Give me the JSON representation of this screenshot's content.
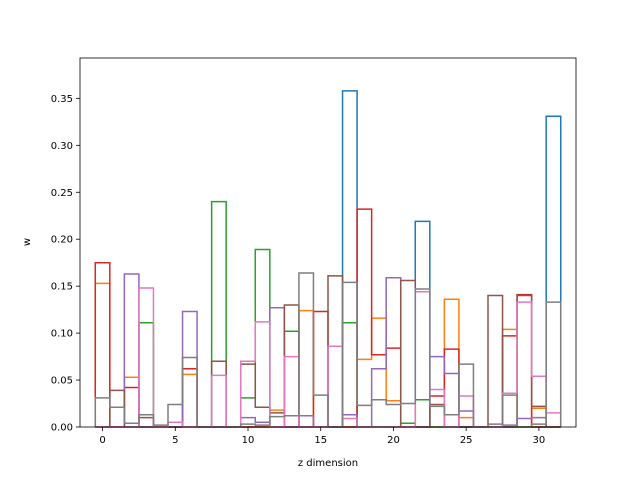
{
  "chart_data": {
    "type": "step-histogram",
    "xlabel": "z dimension",
    "ylabel": "w",
    "xlim": [
      -1.55,
      32.55
    ],
    "ylim": [
      0,
      0.393
    ],
    "xticks": [
      0,
      5,
      10,
      15,
      20,
      25,
      30
    ],
    "yticks": [
      0.0,
      0.05,
      0.1,
      0.15,
      0.2,
      0.25,
      0.3,
      0.35
    ],
    "ytick_labels": [
      "0.00",
      "0.05",
      "0.10",
      "0.15",
      "0.20",
      "0.25",
      "0.30",
      "0.35"
    ],
    "bin_start": -0.5,
    "bin_width": 1,
    "series": [
      {
        "color": "#1f77b4",
        "values": [
          0,
          0,
          0,
          0,
          0,
          0,
          0,
          0,
          0,
          0,
          0,
          0,
          0,
          0,
          0,
          0,
          0,
          0.358,
          0,
          0,
          0,
          0,
          0.219,
          0,
          0,
          0,
          0,
          0,
          0,
          0,
          0,
          0.331
        ]
      },
      {
        "color": "#ff7f0e",
        "values": [
          0.153,
          0,
          0.053,
          0,
          0,
          0,
          0.056,
          0,
          0,
          0,
          0,
          0,
          0.018,
          0,
          0.124,
          0,
          0,
          0,
          0.072,
          0.116,
          0.028,
          0,
          0,
          0,
          0.136,
          0.01,
          0,
          0,
          0.104,
          0,
          0.02,
          0
        ]
      },
      {
        "color": "#2ca02c",
        "values": [
          0,
          0,
          0,
          0.111,
          0,
          0,
          0,
          0,
          0.24,
          0,
          0.031,
          0.189,
          0,
          0.102,
          0,
          0,
          0,
          0.111,
          0,
          0,
          0,
          0.004,
          0.029,
          0,
          0,
          0,
          0,
          0,
          0,
          0,
          0,
          0
        ]
      },
      {
        "color": "#d62728",
        "values": [
          0.175,
          0,
          0.042,
          0,
          0,
          0,
          0.062,
          0,
          0,
          0,
          0,
          0,
          0,
          0,
          0,
          0.123,
          0,
          0,
          0.232,
          0.077,
          0.084,
          0,
          0,
          0.033,
          0.083,
          0,
          0,
          0,
          0.097,
          0.141,
          0,
          0
        ]
      },
      {
        "color": "#9467bd",
        "values": [
          0,
          0,
          0.163,
          0,
          0,
          0,
          0.123,
          0,
          0,
          0,
          0.01,
          0.005,
          0.127,
          0,
          0.012,
          0,
          0,
          0.013,
          0,
          0.062,
          0.159,
          0,
          0,
          0.075,
          0.057,
          0.017,
          0,
          0,
          0.002,
          0.009,
          0.01,
          0
        ]
      },
      {
        "color": "#8c564b",
        "values": [
          0,
          0.039,
          0,
          0.01,
          0,
          0,
          0,
          0,
          0.07,
          0,
          0.067,
          0.021,
          0.015,
          0.13,
          0,
          0,
          0.161,
          0,
          0,
          0,
          0,
          0.156,
          0,
          0.024,
          0,
          0,
          0,
          0.14,
          0,
          0.14,
          0.022,
          0
        ]
      },
      {
        "color": "#e377c2",
        "values": [
          0,
          0,
          0,
          0.148,
          0,
          0.005,
          0,
          0,
          0.055,
          0,
          0.07,
          0.112,
          0,
          0.075,
          0,
          0,
          0.086,
          0.009,
          0,
          0,
          0,
          0,
          0.144,
          0.04,
          0,
          0.033,
          0,
          0,
          0.036,
          0.133,
          0.054,
          0.015
        ]
      },
      {
        "color": "#7f7f7f",
        "values": [
          0.031,
          0.021,
          0.004,
          0.013,
          0.002,
          0.024,
          0.074,
          0,
          0,
          0,
          0.003,
          0.002,
          0.011,
          0.012,
          0.164,
          0.034,
          0,
          0.154,
          0.023,
          0.029,
          0.024,
          0.025,
          0.147,
          0.022,
          0.013,
          0.067,
          0,
          0.003,
          0.034,
          0,
          0.003,
          0.133
        ]
      }
    ]
  }
}
